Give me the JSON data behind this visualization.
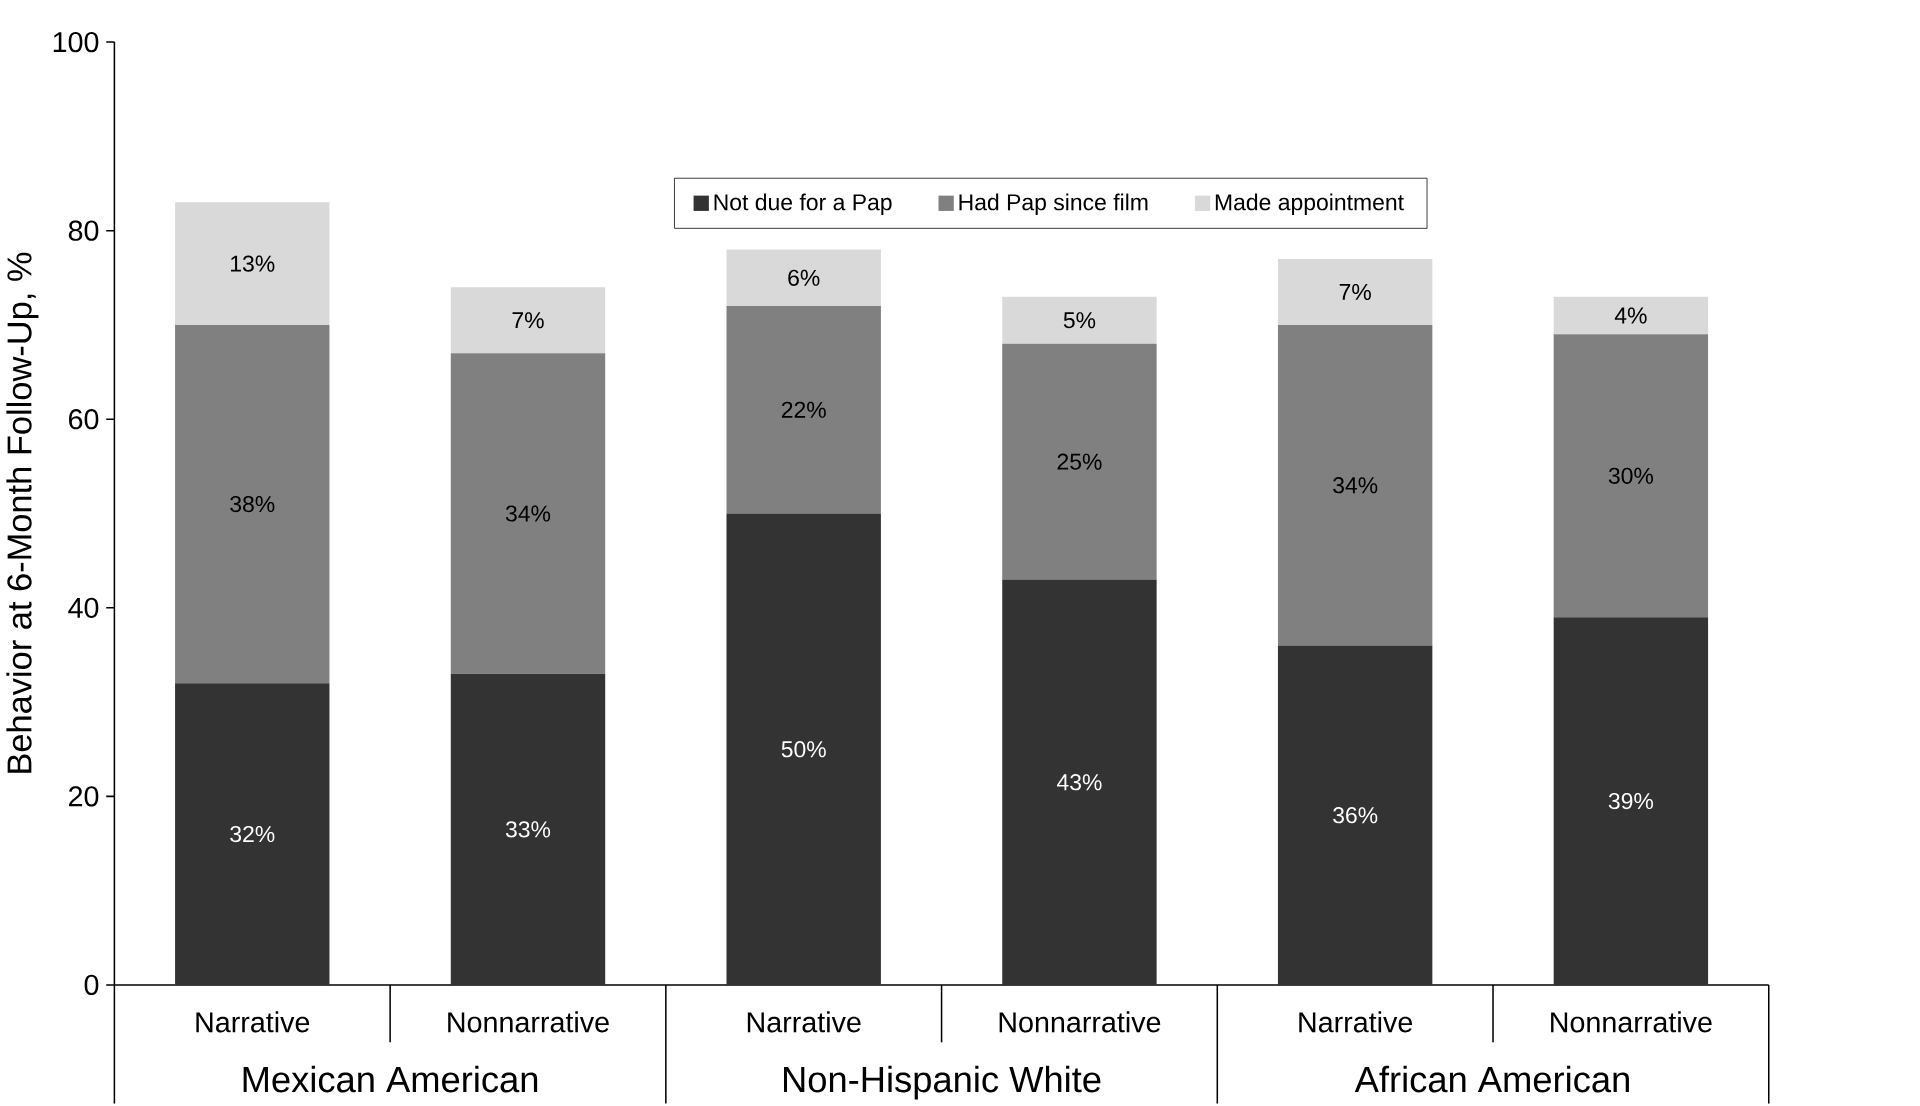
{
  "chart_data": {
    "type": "bar",
    "stacked": true,
    "ylabel": "Behavior at 6-Month Follow-Up, %",
    "categories": [
      "Narrative",
      "Nonnarrative",
      "Narrative",
      "Nonnarrative",
      "Narrative",
      "Nonnarrative"
    ],
    "annotations": [
      "Mexican American",
      "Non-Hispanic White",
      "African American"
    ],
    "series": [
      {
        "name": "Not due for a Pap",
        "color": "#333333",
        "values": [
          32,
          33,
          50,
          43,
          36,
          39
        ],
        "value_labels": [
          "32%",
          "33%",
          "50%",
          "43%",
          "36%",
          "39%"
        ]
      },
      {
        "name": "Had Pap since film",
        "color": "#808080",
        "values": [
          38,
          34,
          22,
          25,
          34,
          30
        ],
        "value_labels": [
          "38%",
          "34%",
          "22%",
          "25%",
          "34%",
          "30%"
        ]
      },
      {
        "name": "Made appointment",
        "color": "#d9d9d9",
        "values": [
          13,
          7,
          6,
          5,
          7,
          4
        ],
        "value_labels": [
          "13%",
          "7%",
          "6%",
          "5%",
          "7%",
          "4%"
        ]
      }
    ],
    "ylim": [
      0,
      100
    ],
    "yticks": [
      0,
      20,
      40,
      60,
      80,
      100
    ],
    "legend": "top",
    "grid": false
  }
}
